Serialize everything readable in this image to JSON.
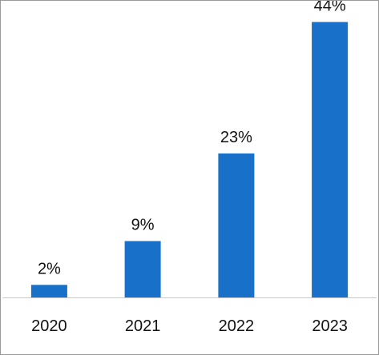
{
  "chart_data": {
    "type": "bar",
    "title": "",
    "xlabel": "",
    "ylabel": "",
    "categories": [
      "2020",
      "2021",
      "2022",
      "2023"
    ],
    "values": [
      2,
      9,
      23,
      44
    ],
    "data_labels": [
      "2%",
      "9%",
      "23%",
      "44%"
    ],
    "ylim": [
      0,
      47
    ],
    "grid": false,
    "legend": "none",
    "colors": {
      "bar": "#1870C8",
      "axis": "#c8c8c8",
      "text": "#111111"
    }
  }
}
